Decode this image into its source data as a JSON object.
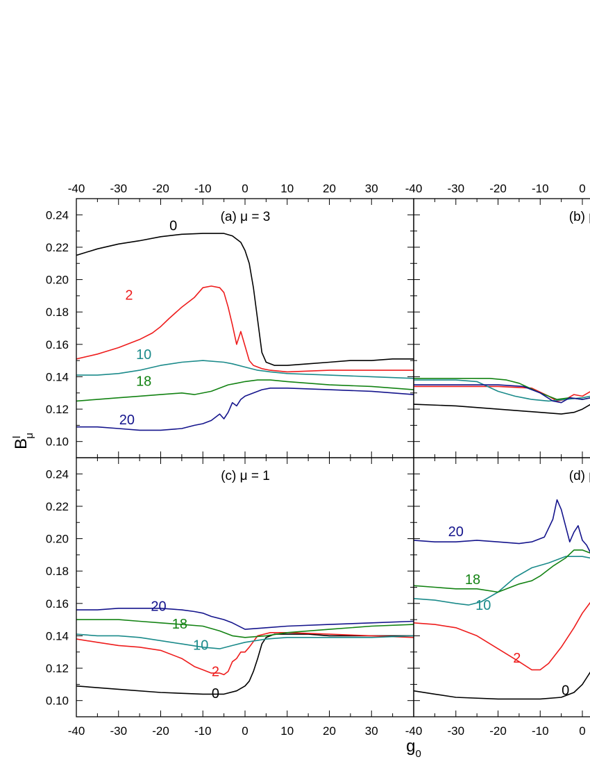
{
  "chart_data": {
    "type": "line",
    "ylabel_main": "B",
    "ylabel_sup": "l",
    "ylabel_sub": "μ",
    "xlabel_main": "g",
    "xlabel_sub": "0",
    "xlim": [
      -40,
      40
    ],
    "ylim": [
      0.09,
      0.25
    ],
    "xticks": [
      -40,
      -30,
      -20,
      -10,
      0,
      10,
      20,
      30
    ],
    "yticks": [
      0.1,
      0.12,
      0.14,
      0.16,
      0.18,
      0.2,
      0.22,
      0.24
    ],
    "ytick_labels": [
      "0.10",
      "0.12",
      "0.14",
      "0.16",
      "0.18",
      "0.20",
      "0.22",
      "0.24"
    ],
    "colors": {
      "0": "#000000",
      "2": "#ee1c1c",
      "10": "#1a8a8a",
      "18": "#128212",
      "20": "#14148c"
    },
    "panels": [
      {
        "id": "a",
        "title": "(a) μ = 3",
        "series": [
          {
            "name": "0",
            "x": [
              -40,
              -35,
              -30,
              -25,
              -20,
              -15,
              -10,
              -5,
              -3,
              -1,
              0,
              1,
              2,
              3,
              4,
              5,
              7,
              10,
              15,
              20,
              25,
              30,
              35,
              40
            ],
            "y": [
              0.215,
              0.219,
              0.222,
              0.224,
              0.2265,
              0.228,
              0.2285,
              0.2285,
              0.227,
              0.223,
              0.218,
              0.21,
              0.195,
              0.175,
              0.155,
              0.149,
              0.147,
              0.147,
              0.148,
              0.149,
              0.15,
              0.15,
              0.151,
              0.151
            ]
          },
          {
            "name": "2",
            "x": [
              -40,
              -35,
              -30,
              -25,
              -22,
              -20,
              -18,
              -15,
              -12,
              -10,
              -8,
              -6,
              -5,
              -4,
              -3,
              -2,
              -1,
              0,
              1,
              2,
              4,
              6,
              10,
              20,
              30,
              40
            ],
            "y": [
              0.151,
              0.154,
              0.158,
              0.163,
              0.167,
              0.171,
              0.176,
              0.183,
              0.189,
              0.195,
              0.196,
              0.195,
              0.192,
              0.183,
              0.172,
              0.16,
              0.168,
              0.159,
              0.15,
              0.147,
              0.145,
              0.144,
              0.143,
              0.144,
              0.144,
              0.144
            ]
          },
          {
            "name": "10",
            "x": [
              -40,
              -35,
              -30,
              -25,
              -20,
              -15,
              -10,
              -5,
              -3,
              0,
              3,
              6,
              10,
              20,
              30,
              40
            ],
            "y": [
              0.141,
              0.141,
              0.142,
              0.144,
              0.147,
              0.149,
              0.15,
              0.149,
              0.148,
              0.146,
              0.144,
              0.143,
              0.142,
              0.141,
              0.14,
              0.139
            ]
          },
          {
            "name": "18",
            "x": [
              -40,
              -35,
              -30,
              -25,
              -20,
              -15,
              -12,
              -8,
              -6,
              -4,
              -2,
              0,
              3,
              6,
              10,
              20,
              30,
              40
            ],
            "y": [
              0.125,
              0.126,
              0.127,
              0.128,
              0.129,
              0.13,
              0.129,
              0.131,
              0.133,
              0.135,
              0.136,
              0.137,
              0.138,
              0.138,
              0.137,
              0.135,
              0.134,
              0.132
            ]
          },
          {
            "name": "20",
            "x": [
              -40,
              -35,
              -30,
              -25,
              -20,
              -15,
              -12,
              -10,
              -8,
              -6,
              -5,
              -4,
              -3,
              -2,
              -1,
              0,
              2,
              4,
              6,
              10,
              20,
              30,
              40
            ],
            "y": [
              0.109,
              0.109,
              0.108,
              0.107,
              0.107,
              0.108,
              0.11,
              0.111,
              0.113,
              0.117,
              0.114,
              0.118,
              0.124,
              0.122,
              0.126,
              0.128,
              0.13,
              0.132,
              0.133,
              0.133,
              0.132,
              0.131,
              0.129
            ]
          }
        ],
        "labels": [
          {
            "text": "0",
            "x": -17,
            "y": 0.2305
          },
          {
            "text": "2",
            "x": -27.5,
            "y": 0.1875
          },
          {
            "text": "10",
            "x": -24,
            "y": 0.151
          },
          {
            "text": "18",
            "x": -24,
            "y": 0.1345
          },
          {
            "text": "20",
            "x": -28,
            "y": 0.1105
          }
        ]
      },
      {
        "id": "b",
        "title": "(b) μ",
        "series": [
          {
            "name": "0",
            "x": [
              -40,
              -30,
              -20,
              -10,
              -5,
              -2,
              0,
              2
            ],
            "y": [
              0.123,
              0.122,
              0.12,
              0.118,
              0.117,
              0.118,
              0.12,
              0.123
            ]
          },
          {
            "name": "2",
            "x": [
              -40,
              -30,
              -20,
              -12,
              -8,
              -6,
              -4,
              -2,
              0,
              2
            ],
            "y": [
              0.134,
              0.134,
              0.134,
              0.133,
              0.128,
              0.125,
              0.126,
              0.129,
              0.128,
              0.131
            ]
          },
          {
            "name": "10",
            "x": [
              -40,
              -30,
              -25,
              -20,
              -16,
              -12,
              -8,
              -4,
              0,
              2
            ],
            "y": [
              0.138,
              0.138,
              0.137,
              0.131,
              0.128,
              0.126,
              0.125,
              0.126,
              0.127,
              0.128
            ]
          },
          {
            "name": "18",
            "x": [
              -40,
              -30,
              -22,
              -18,
              -15,
              -10,
              -6,
              -3,
              0,
              2
            ],
            "y": [
              0.139,
              0.139,
              0.139,
              0.138,
              0.136,
              0.13,
              0.126,
              0.127,
              0.126,
              0.127
            ]
          },
          {
            "name": "20",
            "x": [
              -40,
              -30,
              -20,
              -14,
              -10,
              -7,
              -5,
              -3,
              0,
              2
            ],
            "y": [
              0.135,
              0.135,
              0.135,
              0.134,
              0.13,
              0.125,
              0.124,
              0.127,
              0.126,
              0.127
            ]
          }
        ],
        "labels": []
      },
      {
        "id": "c",
        "title": "(c) μ = 1",
        "series": [
          {
            "name": "0",
            "x": [
              -40,
              -30,
              -20,
              -10,
              -5,
              -2,
              0,
              1,
              2,
              3,
              4,
              5,
              7,
              10,
              15,
              20,
              30,
              40
            ],
            "y": [
              0.109,
              0.107,
              0.105,
              0.104,
              0.104,
              0.106,
              0.109,
              0.112,
              0.118,
              0.126,
              0.135,
              0.139,
              0.141,
              0.141,
              0.141,
              0.14,
              0.14,
              0.14
            ]
          },
          {
            "name": "2",
            "x": [
              -40,
              -35,
              -30,
              -25,
              -20,
              -15,
              -12,
              -10,
              -8,
              -6,
              -5,
              -4,
              -3,
              -2,
              -1,
              0,
              1,
              3,
              6,
              10,
              20,
              30,
              40
            ],
            "y": [
              0.138,
              0.136,
              0.134,
              0.133,
              0.131,
              0.126,
              0.121,
              0.119,
              0.117,
              0.117,
              0.116,
              0.118,
              0.124,
              0.126,
              0.13,
              0.13,
              0.133,
              0.14,
              0.142,
              0.142,
              0.141,
              0.14,
              0.139
            ]
          },
          {
            "name": "10",
            "x": [
              -40,
              -35,
              -30,
              -25,
              -20,
              -15,
              -10,
              -6,
              -3,
              0,
              5,
              10,
              20,
              30,
              40
            ],
            "y": [
              0.141,
              0.14,
              0.14,
              0.139,
              0.137,
              0.135,
              0.133,
              0.132,
              0.134,
              0.136,
              0.138,
              0.139,
              0.139,
              0.139,
              0.14
            ]
          },
          {
            "name": "18",
            "x": [
              -40,
              -35,
              -30,
              -25,
              -20,
              -15,
              -10,
              -6,
              -3,
              0,
              5,
              10,
              20,
              30,
              40
            ],
            "y": [
              0.15,
              0.15,
              0.15,
              0.149,
              0.148,
              0.147,
              0.146,
              0.143,
              0.14,
              0.139,
              0.14,
              0.142,
              0.144,
              0.146,
              0.147
            ]
          },
          {
            "name": "20",
            "x": [
              -40,
              -35,
              -30,
              -25,
              -20,
              -15,
              -12,
              -10,
              -8,
              -5,
              -3,
              0,
              5,
              10,
              20,
              30,
              40
            ],
            "y": [
              0.156,
              0.156,
              0.157,
              0.157,
              0.157,
              0.156,
              0.155,
              0.154,
              0.152,
              0.15,
              0.148,
              0.144,
              0.145,
              0.146,
              0.147,
              0.148,
              0.149
            ]
          }
        ],
        "labels": [
          {
            "text": "0",
            "x": -7,
            "y": 0.1015
          },
          {
            "text": "2",
            "x": -7,
            "y": 0.115
          },
          {
            "text": "10",
            "x": -10.5,
            "y": 0.1315
          },
          {
            "text": "18",
            "x": -15.5,
            "y": 0.1445
          },
          {
            "text": "20",
            "x": -20.5,
            "y": 0.1555
          }
        ]
      },
      {
        "id": "d",
        "title": "(d) μ",
        "series": [
          {
            "name": "0",
            "x": [
              -40,
              -35,
              -30,
              -20,
              -10,
              -5,
              -2,
              0,
              1,
              2
            ],
            "y": [
              0.106,
              0.104,
              0.102,
              0.101,
              0.101,
              0.102,
              0.105,
              0.11,
              0.114,
              0.118
            ]
          },
          {
            "name": "2",
            "x": [
              -40,
              -35,
              -30,
              -25,
              -20,
              -15,
              -12,
              -10,
              -8,
              -5,
              -2,
              0,
              2
            ],
            "y": [
              0.148,
              0.147,
              0.145,
              0.14,
              0.132,
              0.124,
              0.119,
              0.119,
              0.123,
              0.133,
              0.145,
              0.154,
              0.161
            ]
          },
          {
            "name": "10",
            "x": [
              -40,
              -35,
              -30,
              -27,
              -24,
              -20,
              -16,
              -12,
              -8,
              -4,
              0,
              2
            ],
            "y": [
              0.163,
              0.162,
              0.16,
              0.159,
              0.161,
              0.167,
              0.176,
              0.182,
              0.185,
              0.189,
              0.189,
              0.188
            ]
          },
          {
            "name": "18",
            "x": [
              -40,
              -35,
              -30,
              -25,
              -20,
              -15,
              -12,
              -10,
              -7,
              -4,
              -2,
              0,
              2
            ],
            "y": [
              0.171,
              0.17,
              0.169,
              0.169,
              0.167,
              0.172,
              0.174,
              0.177,
              0.183,
              0.188,
              0.193,
              0.193,
              0.191
            ]
          },
          {
            "name": "20",
            "x": [
              -40,
              -35,
              -30,
              -25,
              -20,
              -15,
              -12,
              -9,
              -7,
              -6,
              -5,
              -3,
              -2,
              -1,
              0,
              1,
              2
            ],
            "y": [
              0.199,
              0.198,
              0.198,
              0.199,
              0.198,
              0.197,
              0.198,
              0.201,
              0.212,
              0.224,
              0.218,
              0.198,
              0.204,
              0.208,
              0.199,
              0.196,
              0.191
            ]
          }
        ],
        "labels": [
          {
            "text": "20",
            "x": -30,
            "y": 0.2015
          },
          {
            "text": "18",
            "x": -26,
            "y": 0.172
          },
          {
            "text": "10",
            "x": -23.5,
            "y": 0.156
          },
          {
            "text": "2",
            "x": -15.5,
            "y": 0.1235
          },
          {
            "text": "0",
            "x": -4,
            "y": 0.1035
          }
        ]
      }
    ]
  }
}
